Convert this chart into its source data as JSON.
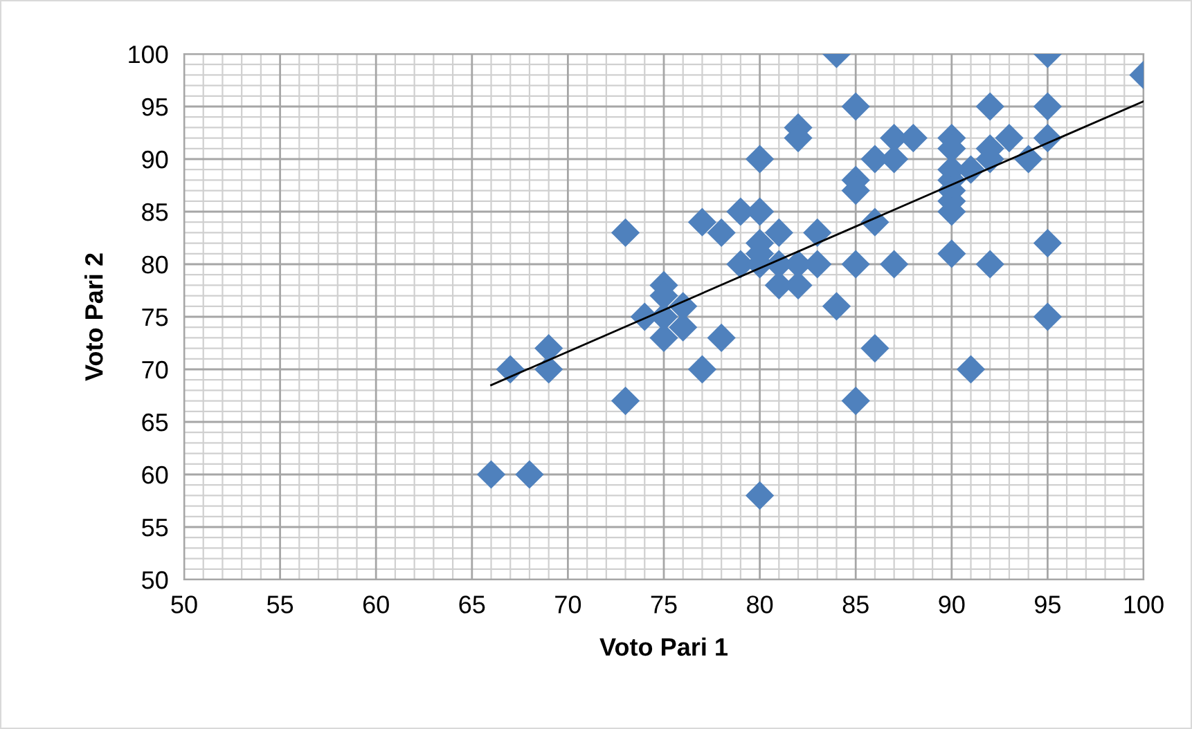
{
  "chart_data": {
    "type": "scatter",
    "xlabel": "Voto Pari 1",
    "ylabel": "Voto Pari 2",
    "xlim": [
      50,
      100
    ],
    "ylim": [
      50,
      100
    ],
    "xticks": [
      50,
      55,
      60,
      65,
      70,
      75,
      80,
      85,
      90,
      95,
      100
    ],
    "yticks": [
      50,
      55,
      60,
      65,
      70,
      75,
      80,
      85,
      90,
      95,
      100
    ],
    "grid": true,
    "legend": false,
    "marker": "diamond",
    "series": [
      {
        "color": "#4f81bd",
        "x": [
          66,
          68,
          67,
          69,
          69,
          73,
          73,
          74,
          75,
          75,
          75,
          76,
          76,
          75,
          77,
          77,
          78,
          78,
          79,
          79,
          80,
          80,
          80,
          80,
          80,
          80,
          81,
          81,
          81,
          82,
          82,
          82,
          82,
          83,
          83,
          84,
          84,
          85,
          85,
          85,
          85,
          85,
          86,
          86,
          86,
          87,
          87,
          87,
          88,
          90,
          90,
          90,
          90,
          90,
          90,
          90,
          90,
          91,
          91,
          92,
          92,
          92,
          92,
          93,
          94,
          95,
          95,
          95,
          95,
          95,
          100
        ],
        "values": [
          60,
          60,
          70,
          72,
          70,
          83,
          67,
          75,
          78,
          77,
          73,
          76,
          74,
          75,
          84,
          70,
          83,
          73,
          85,
          80,
          90,
          85,
          82,
          81,
          80,
          58,
          83,
          78,
          80,
          93,
          92,
          80,
          78,
          83,
          80,
          100,
          76,
          95,
          88,
          87,
          80,
          67,
          90,
          84,
          72,
          92,
          90,
          80,
          92,
          92,
          91,
          89,
          88,
          87,
          86,
          85,
          81,
          89,
          70,
          95,
          91,
          90,
          80,
          92,
          90,
          100,
          95,
          92,
          82,
          75,
          98
        ]
      },
      {
        "type": "line",
        "color": "#000000",
        "marker": "none",
        "x": [
          66,
          100
        ],
        "values": [
          68.5,
          95.5
        ]
      }
    ]
  }
}
